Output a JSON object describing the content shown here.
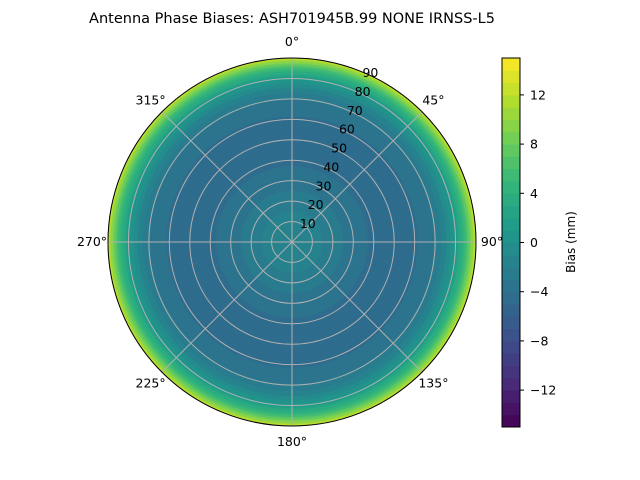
{
  "chart_data": {
    "type": "heatmap",
    "projection": "polar",
    "title": "Antenna Phase Biases: ASH701945B.99   NONE IRNSS-L5",
    "angular_ticks": [
      "0°",
      "45°",
      "90°",
      "135°",
      "180°",
      "225°",
      "270°",
      "315°"
    ],
    "radial_ticks": [
      "10",
      "20",
      "30",
      "40",
      "50",
      "60",
      "70",
      "80",
      "90"
    ],
    "radial_range": [
      0,
      90
    ],
    "grid": true,
    "colormap": "viridis",
    "colorbar": {
      "label": "Bias (mm)",
      "range": [
        -15,
        15
      ],
      "ticks": [
        "12",
        "8",
        "4",
        "0",
        "−4",
        "−8",
        "−12"
      ],
      "tick_values": [
        12,
        8,
        4,
        0,
        -4,
        -8,
        -12
      ]
    },
    "radial_profile": {
      "zenith_deg": [
        0,
        10,
        20,
        30,
        40,
        50,
        60,
        70,
        75,
        80,
        85,
        90
      ],
      "bias_mm": [
        -1,
        -1.5,
        -2.5,
        -3.5,
        -4.2,
        -4.5,
        -4.2,
        -3,
        -1.5,
        1,
        5,
        12
      ]
    }
  }
}
